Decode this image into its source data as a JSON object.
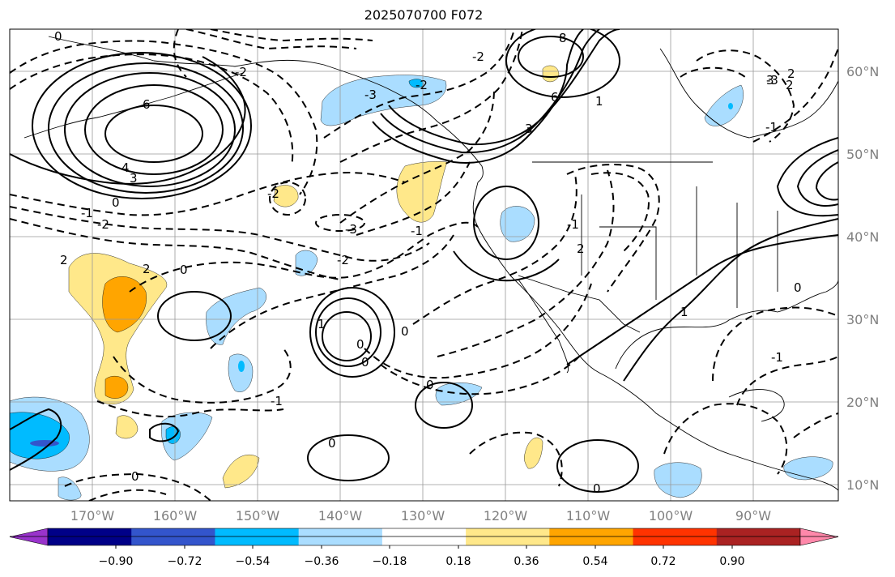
{
  "title": "2025070700 F072",
  "lat_labels": [
    "60°N",
    "50°N",
    "40°N",
    "30°N",
    "20°N",
    "10°N"
  ],
  "lon_labels": [
    "170°W",
    "160°W",
    "150°W",
    "140°W",
    "130°W",
    "120°W",
    "110°W",
    "100°W",
    "90°W"
  ],
  "colorbar": {
    "ticks": [
      "−0.90",
      "−0.72",
      "−0.54",
      "−0.36",
      "−0.18",
      "0.18",
      "0.36",
      "0.54",
      "0.72",
      "0.90"
    ],
    "colors": [
      "#9933cc",
      "#000088",
      "#3355cc",
      "#00bbff",
      "#aaddff",
      "#ffffff",
      "#ffe88a",
      "#ffa500",
      "#ff3300",
      "#aa2222",
      "#ff88aa"
    ]
  },
  "contour_labels": [
    "0",
    "-1",
    "-2",
    "6",
    "4",
    "3",
    "-3",
    "-2",
    "2",
    "0",
    "-1",
    "-2",
    "-3",
    "-2",
    "8",
    "6",
    "3",
    "2",
    "-1",
    "2",
    "-3",
    "-2",
    "0",
    "2",
    "1",
    "0",
    "0",
    "-1",
    "0",
    "0",
    "0",
    "0",
    "1",
    "-1",
    "-1",
    "0",
    "2",
    "3",
    "1",
    "0",
    "-2"
  ]
}
